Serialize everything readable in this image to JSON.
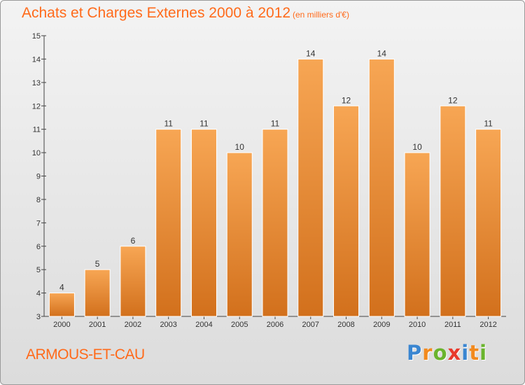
{
  "header": {
    "title": "Achats et Charges Externes 2000 à 2012",
    "subtitle": "(en milliers d'€)"
  },
  "footer": {
    "town": "ARMOUS-ET-CAU",
    "logo_letters": [
      "P",
      "r",
      "o",
      "x",
      "i",
      "t",
      "i"
    ],
    "logo_colors": [
      "#3a86d1",
      "#f28a1e",
      "#6ab42d",
      "#e83a2c",
      "#3a86d1",
      "#f28a1e",
      "#6ab42d"
    ]
  },
  "colors": {
    "accent": "#ff6a1a",
    "bar_top": "#f7a654",
    "bar_bottom": "#d2701c"
  },
  "chart_data": {
    "type": "bar",
    "title": "Achats et Charges Externes 2000 à 2012",
    "subtitle": "(en milliers d'€)",
    "categories": [
      "2000",
      "2001",
      "2002",
      "2003",
      "2004",
      "2005",
      "2006",
      "2007",
      "2008",
      "2009",
      "2010",
      "2011",
      "2012"
    ],
    "values": [
      4,
      5,
      6,
      11,
      11,
      10,
      11,
      14,
      12,
      14,
      10,
      12,
      11
    ],
    "ylim": [
      3,
      15
    ],
    "yticks": [
      3,
      4,
      5,
      6,
      7,
      8,
      9,
      10,
      11,
      12,
      13,
      14,
      15
    ],
    "grid": false,
    "data_labels": true
  }
}
